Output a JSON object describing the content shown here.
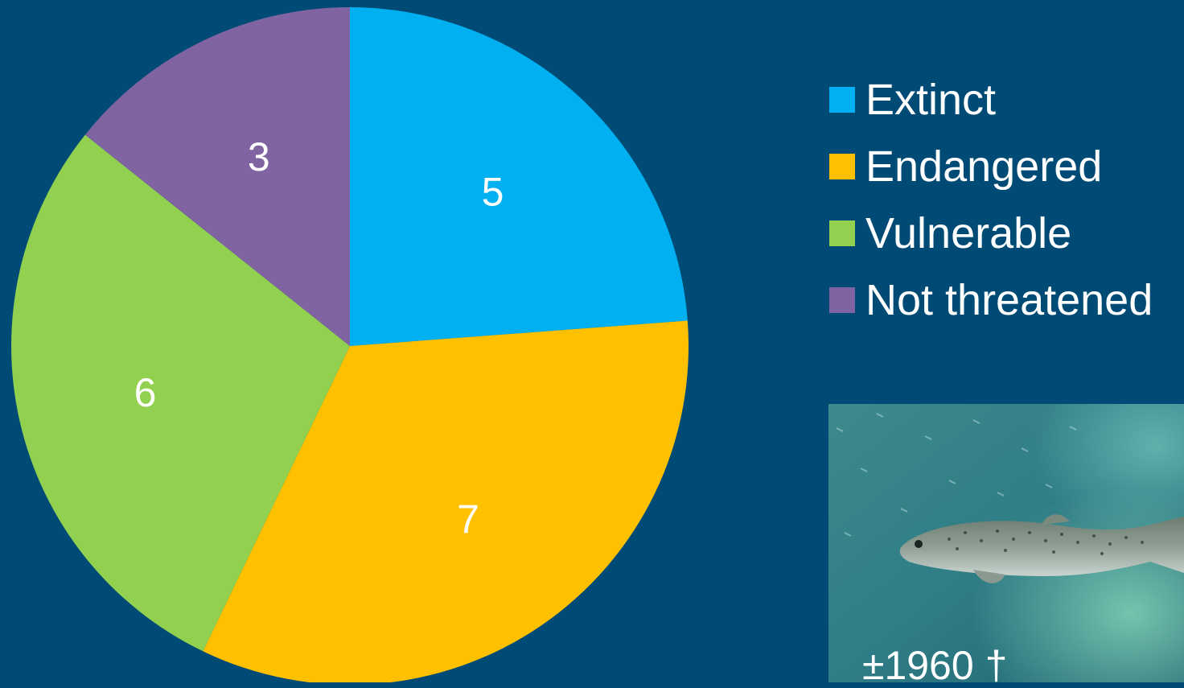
{
  "chart_data": {
    "type": "pie",
    "categories": [
      "Extinct",
      "Endangered",
      "Vulnerable",
      "Not threatened"
    ],
    "values": [
      5,
      7,
      6,
      3
    ],
    "data_labels": [
      "5",
      "7",
      "6",
      "3"
    ],
    "colors": [
      "#00b0f0",
      "#ffc000",
      "#92d050",
      "#8064a2"
    ],
    "start_angle": "12 o'clock",
    "direction": "clockwise",
    "legend": "right"
  },
  "photo": {
    "subject": "trout-fish",
    "caption": "±1960 †"
  }
}
